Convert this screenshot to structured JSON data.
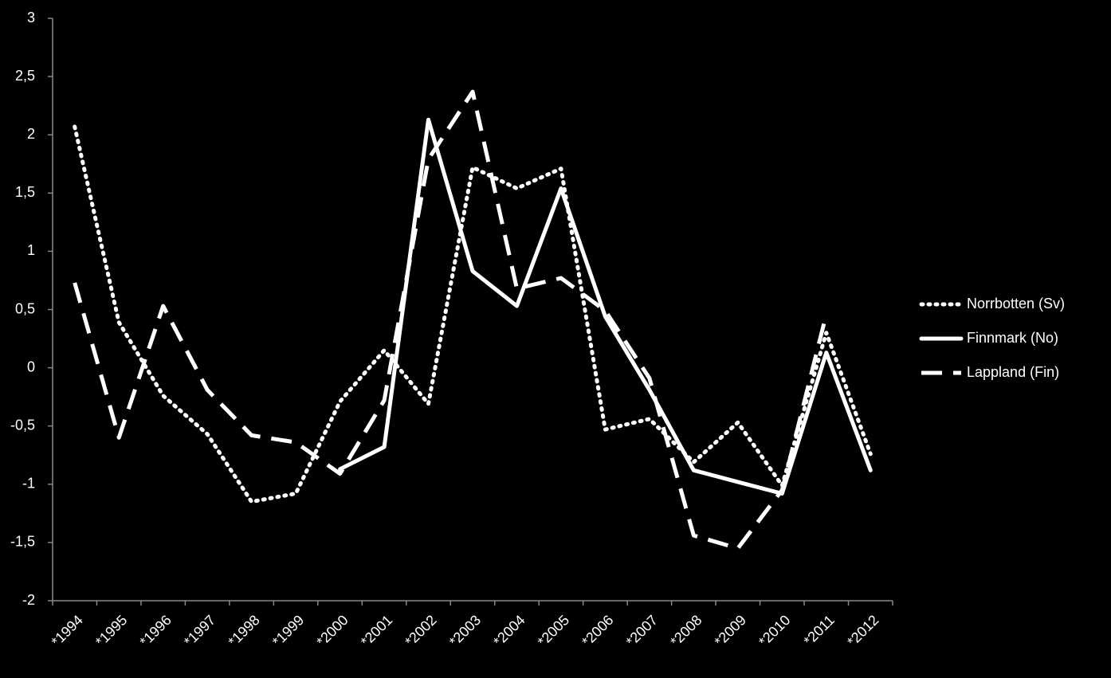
{
  "chart_data": {
    "type": "line",
    "categories": [
      "*1994",
      "*1995",
      "*1996",
      "*1997",
      "*1998",
      "*1999",
      "*2000",
      "*2001",
      "*2002",
      "*2003",
      "*2004",
      "*2005",
      "*2006",
      "*2007",
      "*2008",
      "*2009",
      "*2010",
      "*2011",
      "*2012"
    ],
    "series": [
      {
        "name": "Norrbotten (Sv)",
        "color": "#ffffff",
        "dash": "dotted",
        "values": [
          2.07,
          0.39,
          -0.24,
          -0.57,
          -1.15,
          -1.08,
          -0.29,
          0.15,
          -0.31,
          1.72,
          1.54,
          1.71,
          -0.53,
          -0.44,
          -0.81,
          -0.47,
          -1.01,
          0.3,
          -0.74
        ]
      },
      {
        "name": "Finnmark (No)",
        "color": "#ffffff",
        "dash": "solid",
        "values": [
          null,
          null,
          null,
          null,
          null,
          null,
          -0.87,
          -0.68,
          2.13,
          0.83,
          0.53,
          1.54,
          0.44,
          -0.19,
          -0.88,
          -0.98,
          -1.08,
          0.13,
          -0.88
        ]
      },
      {
        "name": "Lappland (Fin)",
        "color": "#ffffff",
        "dash": "dashed",
        "values": [
          0.73,
          -0.6,
          0.53,
          -0.19,
          -0.58,
          -0.64,
          -0.91,
          -0.28,
          1.79,
          2.37,
          0.68,
          0.77,
          0.49,
          -0.09,
          -1.44,
          -1.55,
          -1.05,
          0.46,
          null
        ]
      }
    ],
    "ylim": [
      -2,
      3
    ],
    "yticks": [
      -2,
      {
        "value": -1.5,
        "label": "-1,5"
      },
      -1,
      {
        "value": -0.5,
        "label": "-0,5"
      },
      0,
      {
        "value": 0.5,
        "label": "0,5"
      },
      1,
      {
        "value": 1.5,
        "label": "1,5"
      },
      2,
      {
        "value": 2.5,
        "label": "2,5"
      },
      3
    ],
    "legend": "right"
  }
}
